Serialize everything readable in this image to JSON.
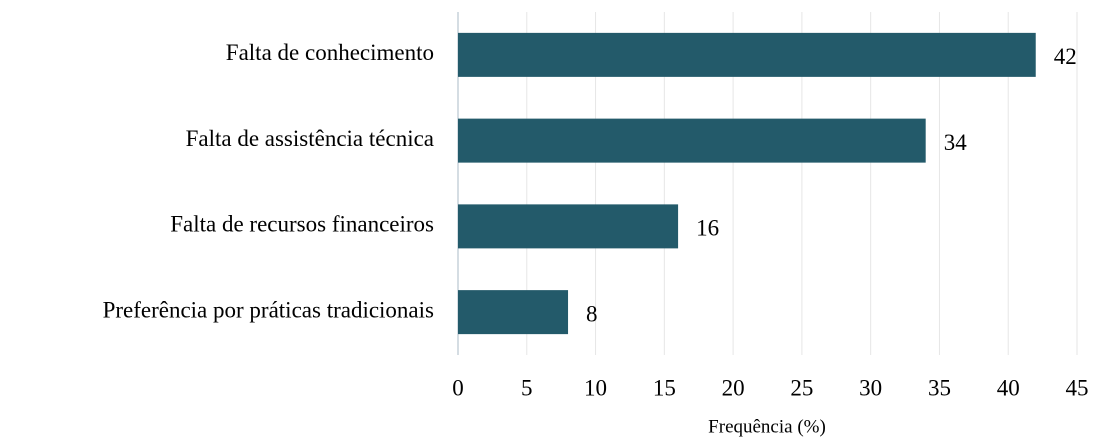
{
  "chart_data": {
    "type": "barh",
    "categories": [
      "Falta de conhecimento",
      "Falta de assistência técnica",
      "Falta de recursos financeiros",
      "Preferência por práticas tradicionais"
    ],
    "values": [
      42,
      34,
      16,
      8
    ],
    "color": "#235a6a",
    "xlabel": "Frequência (%)",
    "xlim": [
      0,
      45
    ],
    "xticks": [
      0,
      5,
      10,
      15,
      20,
      25,
      30,
      35,
      40,
      45
    ],
    "grid": true
  }
}
